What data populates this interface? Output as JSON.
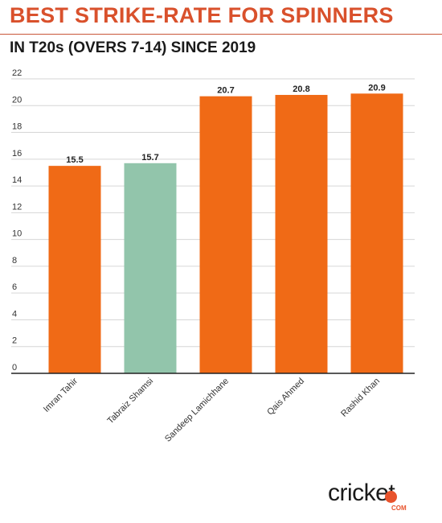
{
  "title": "BEST STRIKE-RATE FOR SPINNERS",
  "subtitle": "IN T20s (OVERS 7-14) SINCE 2019",
  "colors": {
    "title": "#d9512c",
    "bar_default": "#f06a16",
    "bar_highlight": "#92c5ab",
    "logo_accent": "#e8532c"
  },
  "chart_data": {
    "type": "bar",
    "categories": [
      "Imran Tahir",
      "Tabraiz Shamsi",
      "Sandeep Lamichhane",
      "Qais Ahmed",
      "Rashid Khan"
    ],
    "values": [
      15.5,
      15.7,
      20.7,
      20.8,
      20.9
    ],
    "value_labels": [
      "15.5",
      "15.7",
      "20.7",
      "20.8",
      "20.9"
    ],
    "highlight_index": 1,
    "ylim": [
      0,
      22
    ],
    "yticks": [
      0,
      2,
      4,
      6,
      8,
      10,
      12,
      14,
      16,
      18,
      20,
      22
    ],
    "grid": true,
    "legend": "none"
  },
  "logo": {
    "word": "cricket",
    "suffix": "COM"
  }
}
